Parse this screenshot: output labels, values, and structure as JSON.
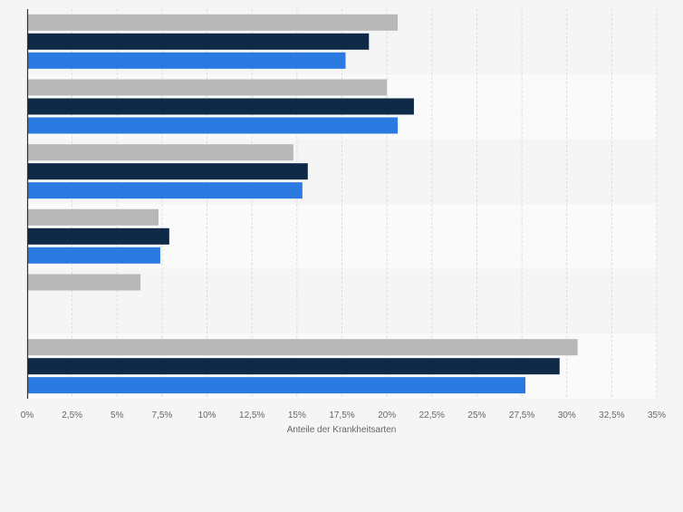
{
  "chart_data": {
    "type": "bar",
    "orientation": "horizontal",
    "title": "",
    "xlabel": "Anteile der Krankheitsarten",
    "ylabel": "",
    "xlim": [
      0,
      35
    ],
    "tick_values": [
      0,
      2.5,
      5,
      7.5,
      10,
      12.5,
      15,
      17.5,
      20,
      22.5,
      25,
      27.5,
      30,
      32.5,
      35
    ],
    "tick_labels": [
      "0%",
      "2,5%",
      "5%",
      "7,5%",
      "10%",
      "12,5%",
      "15%",
      "17,5%",
      "20%",
      "22,5%",
      "25%",
      "27,5%",
      "30%",
      "32,5%",
      "35%"
    ],
    "categories": [
      "",
      "",
      "",
      "",
      "",
      ""
    ],
    "grid": true,
    "legend": "none",
    "series": [
      {
        "color": "#b8b8b8",
        "values": [
          20.6,
          20.0,
          14.8,
          7.3,
          6.3,
          30.6
        ]
      },
      {
        "color": "#0e2a47",
        "values": [
          19.0,
          21.5,
          15.6,
          7.9,
          null,
          29.6
        ]
      },
      {
        "color": "#2a7ae2",
        "values": [
          17.7,
          20.6,
          15.3,
          7.4,
          null,
          27.7
        ]
      }
    ],
    "band_colors": [
      "#f5f5f5",
      "#fafafa"
    ],
    "gridline_color": "#dddddd",
    "axis_color": "#333333",
    "text_color": "#666666"
  }
}
